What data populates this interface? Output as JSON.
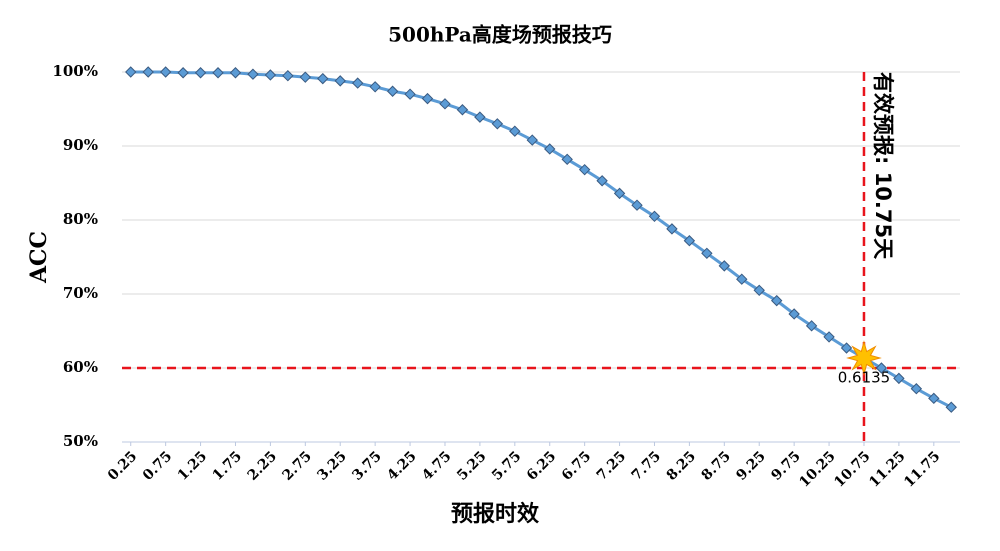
{
  "chart_data": {
    "type": "line",
    "title": "500hPa高度场预报技巧",
    "x_label": "预报时效",
    "y_label": "ACC",
    "x": [
      0.25,
      0.5,
      0.75,
      1,
      1.25,
      1.5,
      1.75,
      2,
      2.25,
      2.5,
      2.75,
      3,
      3.25,
      3.5,
      3.75,
      4,
      4.25,
      4.5,
      4.75,
      5,
      5.25,
      5.5,
      5.75,
      6,
      6.25,
      6.5,
      6.75,
      7,
      7.25,
      7.5,
      7.75,
      8,
      8.25,
      8.5,
      8.75,
      9,
      9.25,
      9.5,
      9.75,
      10,
      10.25,
      10.5,
      10.75,
      11,
      11.25,
      11.5,
      11.75,
      12
    ],
    "series": [
      {
        "name": "ACC",
        "color": "#5b9bd5",
        "values": [
          100,
          100,
          100,
          99.9,
          99.9,
          99.9,
          99.9,
          99.7,
          99.6,
          99.5,
          99.3,
          99.1,
          98.8,
          98.5,
          98.0,
          97.4,
          97.0,
          96.4,
          95.7,
          94.9,
          93.9,
          93.0,
          92.0,
          90.8,
          89.6,
          88.2,
          86.8,
          85.3,
          83.6,
          82.0,
          80.5,
          78.8,
          77.2,
          75.5,
          73.8,
          72.0,
          70.5,
          69.1,
          67.3,
          65.7,
          64.2,
          62.7,
          61.35,
          60.0,
          58.6,
          57.2,
          55.9,
          54.7
        ],
        "value_labels": [
          null,
          null,
          null,
          null,
          null,
          null,
          null,
          null,
          null,
          null,
          null,
          null,
          null,
          null,
          null,
          null,
          null,
          null,
          null,
          null,
          null,
          null,
          null,
          null,
          null,
          null,
          null,
          null,
          null,
          null,
          null,
          null,
          null,
          null,
          null,
          null,
          null,
          null,
          null,
          null,
          null,
          null,
          "0.6135",
          null,
          null,
          null,
          null,
          null
        ]
      }
    ],
    "xlim": [
      0.125,
      12.125
    ],
    "xticks": [
      0.25,
      0.75,
      1.25,
      1.75,
      2.25,
      2.75,
      3.25,
      3.75,
      4.25,
      4.75,
      5.25,
      5.75,
      6.25,
      6.75,
      7.25,
      7.75,
      8.25,
      8.75,
      9.25,
      9.75,
      10.25,
      10.75,
      11.25,
      11.75
    ],
    "ylim": [
      50,
      100
    ],
    "yticks": [
      {
        "value": 50,
        "label": "50%"
      },
      {
        "value": 60,
        "label": "60%"
      },
      {
        "value": 70,
        "label": "70%"
      },
      {
        "value": 80,
        "label": "80%"
      },
      {
        "value": 90,
        "label": "90%"
      },
      {
        "value": 100,
        "label": "100%"
      }
    ],
    "grid": true,
    "reference_lines": {
      "x": 10.75,
      "y": 60,
      "color": "#e8141c"
    },
    "annotation": "有效预报: 10.75天"
  }
}
